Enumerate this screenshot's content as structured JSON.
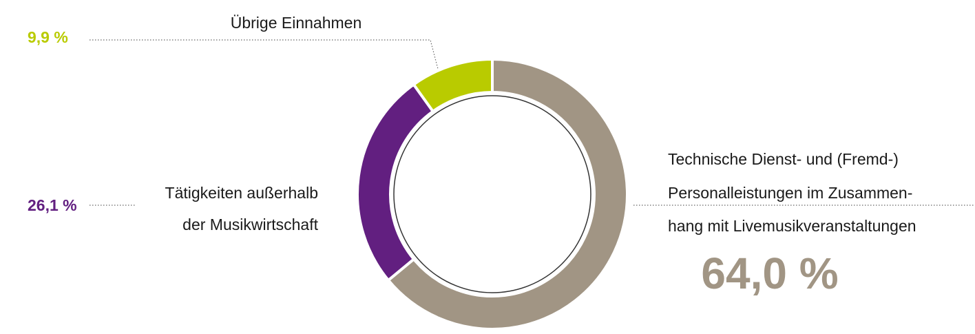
{
  "chart_data": {
    "type": "pie",
    "donut": true,
    "categories": [
      [
        "Technische Dienst- und (Fremd-)",
        "Personalleistungen im Zusammen-",
        "hang mit Livemusikveranstaltungen"
      ],
      [
        "Tätigkeiten außerhalb",
        "der Musikwirtschaft"
      ],
      [
        "Übrige Einnahmen"
      ]
    ],
    "values": [
      64.0,
      26.1,
      9.9
    ],
    "value_labels": [
      "64,0 %",
      "26,1 %",
      "9,9 %"
    ],
    "colors": [
      "#a19584",
      "#621f80",
      "#b9cb00"
    ]
  }
}
